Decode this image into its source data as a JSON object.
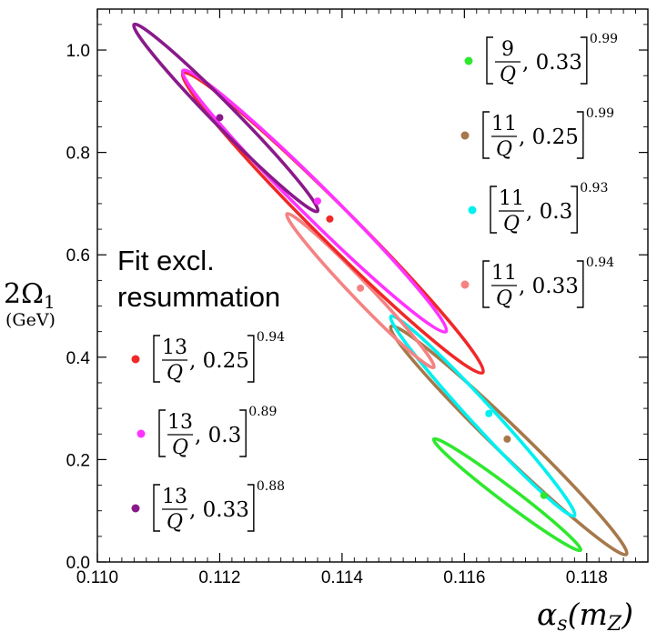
{
  "chart_data": {
    "type": "scatter",
    "title": "",
    "xlabel": {
      "base": "α",
      "sub": "s",
      "paren_open": "(m",
      "sub2": "Z",
      "paren_close": ")"
    },
    "ylabel": {
      "main": "2Ω",
      "sub": "1",
      "unit": "(GeV)"
    },
    "xlim": [
      0.11,
      0.119
    ],
    "ylim": [
      0.0,
      1.08
    ],
    "x_ticks": [
      0.11,
      0.112,
      0.114,
      0.116,
      0.118
    ],
    "x_tick_labels": [
      "0.110",
      "0.112",
      "0.114",
      "0.116",
      "0.118"
    ],
    "y_ticks": [
      0.0,
      0.2,
      0.4,
      0.6,
      0.8,
      1.0
    ],
    "y_tick_labels": [
      "0.0",
      "0.2",
      "0.4",
      "0.6",
      "0.8",
      "1.0"
    ],
    "annotation": [
      "Fit excl.",
      "resummation"
    ],
    "series": [
      {
        "num": "9",
        "denom": "Q",
        "value": "0.33",
        "exp": "0.99",
        "color": "#2ee82e",
        "center": [
          0.1173,
          0.13
        ],
        "ellipse": [
          [
            0.1155,
            0.24
          ],
          [
            0.1179,
            0.023
          ]
        ]
      },
      {
        "num": "11",
        "denom": "Q",
        "value": "0.25",
        "exp": "0.99",
        "color": "#a6784a",
        "center": [
          0.1167,
          0.24
        ],
        "ellipse": [
          [
            0.1148,
            0.46
          ],
          [
            0.11865,
            0.015
          ]
        ]
      },
      {
        "num": "11",
        "denom": "Q",
        "value": "0.3",
        "exp": "0.93",
        "color": "#00f0f0",
        "center": [
          0.1164,
          0.29
        ],
        "ellipse": [
          [
            0.1148,
            0.48
          ],
          [
            0.1178,
            0.09
          ]
        ]
      },
      {
        "num": "11",
        "denom": "Q",
        "value": "0.33",
        "exp": "0.94",
        "color": "#f58282",
        "center": [
          0.1143,
          0.535
        ],
        "ellipse": [
          [
            0.1131,
            0.68
          ],
          [
            0.1155,
            0.38
          ]
        ]
      },
      {
        "num": "13",
        "denom": "Q",
        "value": "0.25",
        "exp": "0.94",
        "color": "#f02828",
        "center": [
          0.1138,
          0.67
        ],
        "ellipse": [
          [
            0.1114,
            0.955
          ],
          [
            0.1163,
            0.37
          ]
        ]
      },
      {
        "num": "13",
        "denom": "Q",
        "value": "0.3",
        "exp": "0.89",
        "color": "#ff33ff",
        "center": [
          0.1136,
          0.705
        ],
        "ellipse": [
          [
            0.1114,
            0.96
          ],
          [
            0.1157,
            0.45
          ]
        ]
      },
      {
        "num": "13",
        "denom": "Q",
        "value": "0.33",
        "exp": "0.88",
        "color": "#8a1a8a",
        "center": [
          0.112,
          0.868
        ],
        "ellipse": [
          [
            0.1106,
            1.05
          ],
          [
            0.1136,
            0.685
          ]
        ]
      }
    ],
    "legend": {
      "placement": [
        "top-right",
        "left"
      ]
    }
  }
}
